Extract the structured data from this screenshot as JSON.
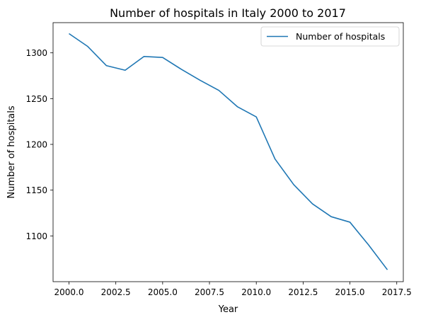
{
  "chart_data": {
    "type": "line",
    "title": "Number of hospitals in Italy 2000 to 2017",
    "xlabel": "Year",
    "ylabel": "Number of hospitals",
    "xlim": [
      1999.15,
      2017.85
    ],
    "ylim": [
      1050,
      1333
    ],
    "xticks": [
      2000.0,
      2002.5,
      2005.0,
      2007.5,
      2010.0,
      2012.5,
      2015.0,
      2017.5
    ],
    "xtick_labels": [
      "2000.0",
      "2002.5",
      "2005.0",
      "2007.5",
      "2010.0",
      "2012.5",
      "2015.0",
      "2017.5"
    ],
    "yticks": [
      1100,
      1150,
      1200,
      1250,
      1300
    ],
    "ytick_labels": [
      "1100",
      "1150",
      "1200",
      "1250",
      "1300"
    ],
    "grid": false,
    "legend": {
      "position": "upper right"
    },
    "series": [
      {
        "name": "Number of hospitals",
        "color": "#1f77b4",
        "x": [
          2000,
          2001,
          2002,
          2003,
          2004,
          2005,
          2006,
          2007,
          2008,
          2009,
          2010,
          2011,
          2012,
          2013,
          2014,
          2015,
          2016,
          2017
        ],
        "y": [
          1321,
          1307,
          1286,
          1281,
          1296,
          1295,
          1282,
          1270,
          1259,
          1241,
          1230,
          1184,
          1156,
          1135,
          1121,
          1115,
          1090,
          1063
        ]
      }
    ]
  }
}
